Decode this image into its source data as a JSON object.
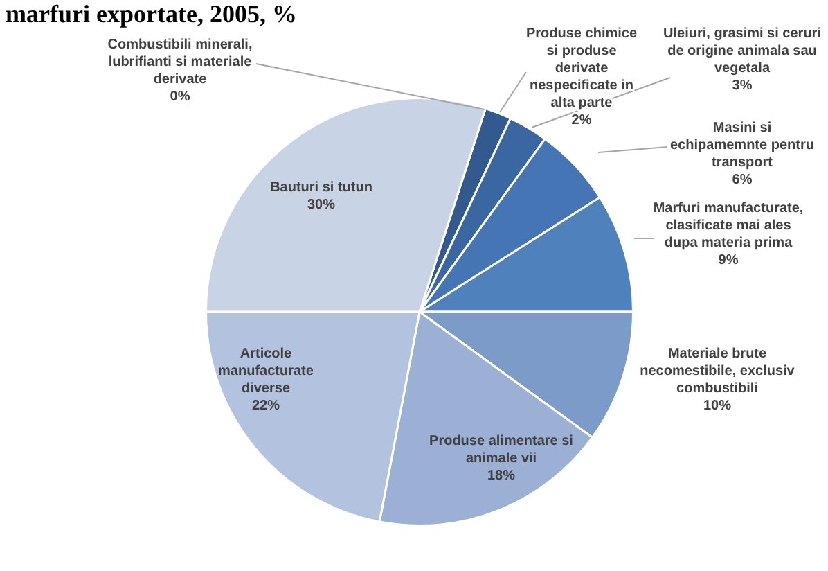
{
  "chart_data": {
    "type": "pie",
    "title": "marfuri exportate, 2005, %",
    "categories": [
      "Combustibili minerali, lubrifianti si materiale derivate",
      "Produse chimice si produse derivate nespecificate in alta parte",
      "Uleiuri, grasimi si ceruri de origine animala sau vegetala",
      "Masini si echipamemnte pentru transport",
      "Marfuri manufacturate, clasificate mai ales dupa materia prima",
      "Materiale brute necomestibile, exclusiv combustibili",
      "Produse alimentare si animale vii",
      "Articole manufacturate diverse",
      "Bauturi si tutun"
    ],
    "values": [
      0,
      2,
      3,
      6,
      9,
      10,
      18,
      22,
      30
    ],
    "value_labels": [
      "0%",
      "2%",
      "3%",
      "6%",
      "9%",
      "10%",
      "18%",
      "22%",
      "30%"
    ],
    "colors": [
      "#2c4d7a",
      "#325a8e",
      "#3a67a2",
      "#4575b4",
      "#4f81bd",
      "#7d9bc8",
      "#9bb0d4",
      "#b3c2de",
      "#c9d3e6"
    ],
    "legend": false
  }
}
